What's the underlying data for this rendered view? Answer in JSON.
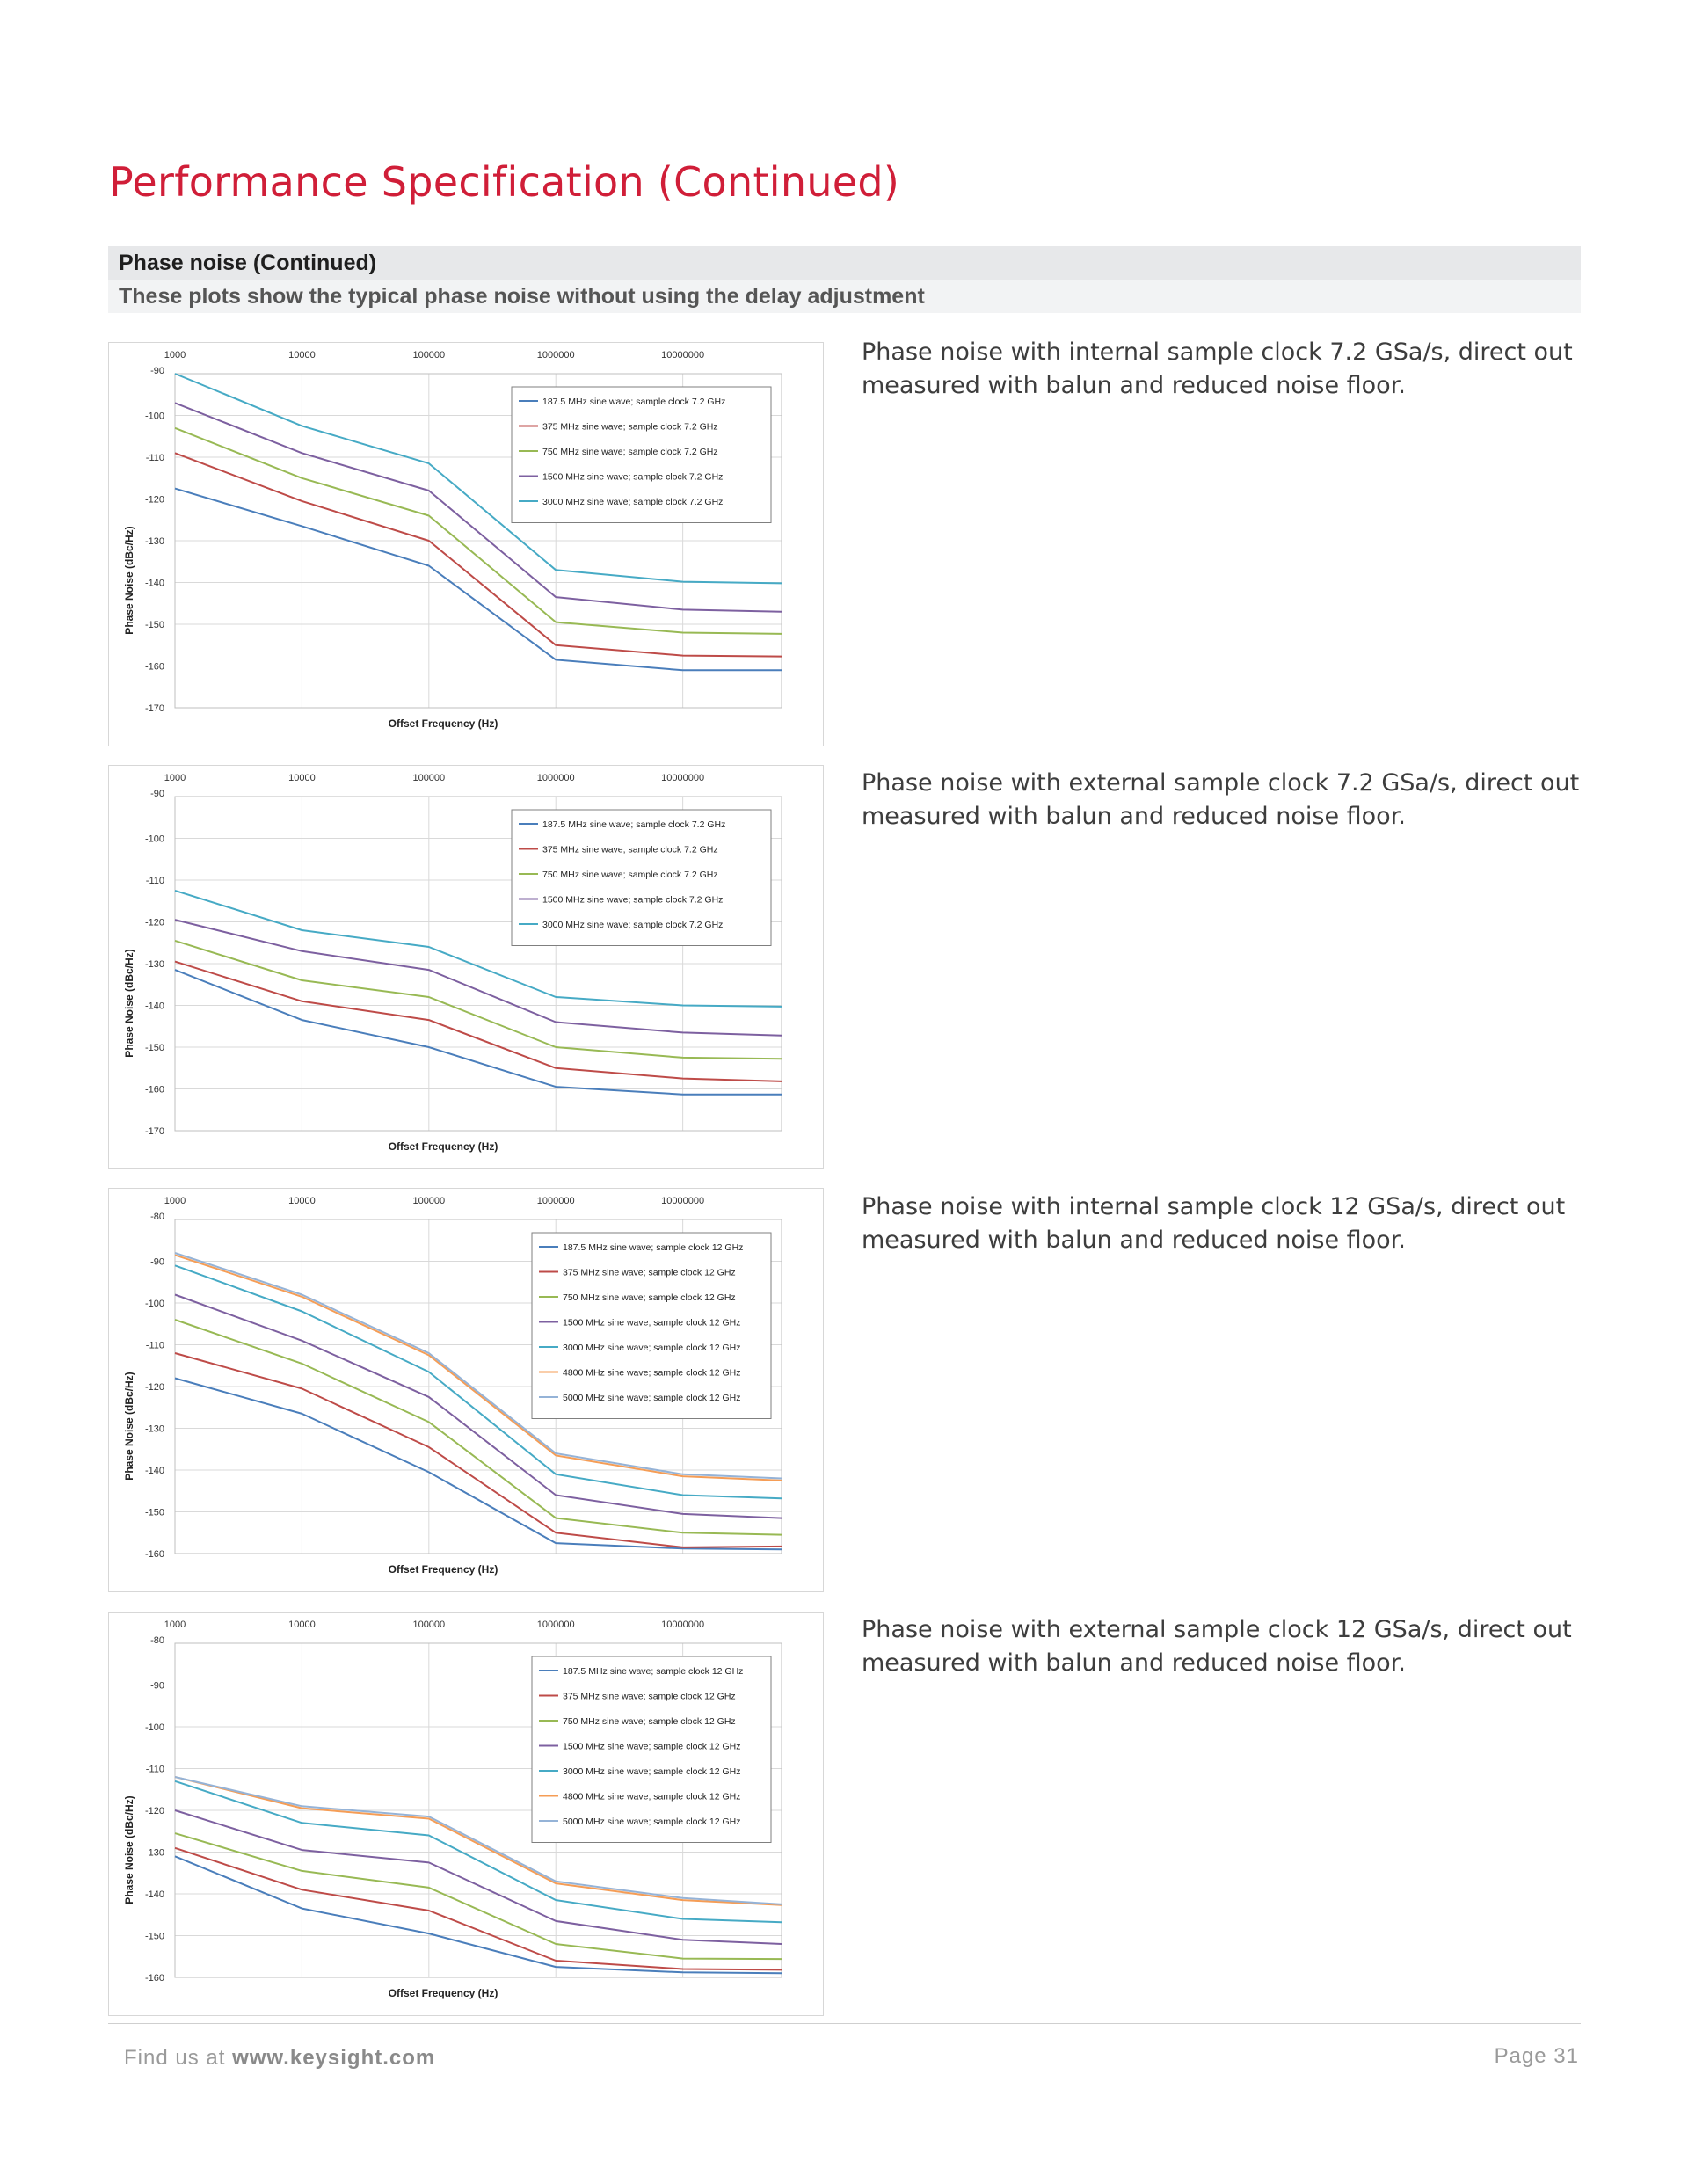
{
  "page": {
    "title": "Performance Specification (Continued)",
    "section_title": "Phase noise (Continued)",
    "section_subtitle": "These plots show the typical phase noise without using the delay adjustment"
  },
  "captions": [
    "Phase noise with internal sample clock 7.2 GSa/s, direct out measured with balun and reduced noise floor.",
    "Phase noise with external sample clock 7.2 GSa/s, direct out measured with balun and reduced noise floor.",
    "Phase noise with internal sample clock 12 GSa/s, direct out measured with balun and reduced noise floor.",
    "Phase noise with external sample clock 12 GSa/s, direct out measured with balun and reduced noise floor."
  ],
  "footer": {
    "prefix": "Find us at ",
    "url": "www.keysight.com",
    "page": "Page 31"
  },
  "chart_data": [
    {
      "type": "line",
      "xlabel": "Offset Frequency (Hz)",
      "ylabel": "Phase Noise (dBc/Hz)",
      "x": [
        1000,
        10000,
        100000,
        1000000,
        10000000,
        60000000
      ],
      "x_ticks": [
        "1000",
        "10000",
        "100000",
        "1000000",
        "10000000"
      ],
      "x_scale": "log",
      "xlim": [
        1000,
        60000000
      ],
      "ylim": [
        -170,
        -90
      ],
      "y_ticks": [
        -90,
        -100,
        -110,
        -120,
        -130,
        -140,
        -150,
        -160,
        -170
      ],
      "grid": true,
      "legend": "top-right",
      "series": [
        {
          "name": "187.5 MHz sine wave; sample clock 7.2 GHz",
          "color": "#4a7ebb",
          "values": [
            -117.5,
            -126.5,
            -136,
            -158.5,
            -161,
            -161
          ]
        },
        {
          "name": "375 MHz sine wave; sample clock 7.2 GHz",
          "color": "#be4b48",
          "values": [
            -109,
            -120.5,
            -130,
            -155,
            -157.5,
            -157.7
          ]
        },
        {
          "name": "750 MHz sine wave; sample clock 7.2 GHz",
          "color": "#98b954",
          "values": [
            -103,
            -115,
            -124,
            -149.5,
            -152,
            -152.3
          ]
        },
        {
          "name": "1500 MHz sine wave; sample clock 7.2 GHz",
          "color": "#7d60a0",
          "values": [
            -97,
            -109,
            -118,
            -143.5,
            -146.5,
            -147
          ]
        },
        {
          "name": "3000 MHz sine wave; sample clock 7.2 GHz",
          "color": "#46aac5",
          "values": [
            -90,
            -102.5,
            -111.5,
            -137,
            -139.8,
            -140.2
          ]
        }
      ]
    },
    {
      "type": "line",
      "xlabel": "Offset Frequency (Hz)",
      "ylabel": "Phase Noise (dBc/Hz)",
      "x": [
        1000,
        10000,
        100000,
        1000000,
        10000000,
        60000000
      ],
      "x_ticks": [
        "1000",
        "10000",
        "100000",
        "1000000",
        "10000000"
      ],
      "x_scale": "log",
      "xlim": [
        1000,
        60000000
      ],
      "ylim": [
        -170,
        -90
      ],
      "y_ticks": [
        -90,
        -100,
        -110,
        -120,
        -130,
        -140,
        -150,
        -160,
        -170
      ],
      "grid": true,
      "legend": "top-right",
      "series": [
        {
          "name": "187.5 MHz sine wave; sample clock 7.2 GHz",
          "color": "#4a7ebb",
          "values": [
            -131.5,
            -143.5,
            -150,
            -159.5,
            -161.3,
            -161.3
          ]
        },
        {
          "name": "375 MHz sine wave; sample clock 7.2 GHz",
          "color": "#be4b48",
          "values": [
            -129.5,
            -139,
            -143.5,
            -155,
            -157.5,
            -158.2
          ]
        },
        {
          "name": "750 MHz sine wave; sample clock 7.2 GHz",
          "color": "#98b954",
          "values": [
            -124.5,
            -134,
            -138,
            -150,
            -152.5,
            -152.8
          ]
        },
        {
          "name": "1500 MHz sine wave; sample clock 7.2 GHz",
          "color": "#7d60a0",
          "values": [
            -119.5,
            -127,
            -131.5,
            -144,
            -146.5,
            -147.2
          ]
        },
        {
          "name": "3000 MHz sine wave; sample clock 7.2 GHz",
          "color": "#46aac5",
          "values": [
            -112.5,
            -122,
            -126,
            -138,
            -140,
            -140.3
          ]
        }
      ]
    },
    {
      "type": "line",
      "xlabel": "Offset Frequency (Hz)",
      "ylabel": "Phase Noise (dBc/Hz)",
      "x": [
        1000,
        10000,
        100000,
        1000000,
        10000000,
        60000000
      ],
      "x_ticks": [
        "1000",
        "10000",
        "100000",
        "1000000",
        "10000000"
      ],
      "x_scale": "log",
      "xlim": [
        1000,
        60000000
      ],
      "ylim": [
        -160,
        -80
      ],
      "y_ticks": [
        -80,
        -90,
        -100,
        -110,
        -120,
        -130,
        -140,
        -150,
        -160
      ],
      "grid": true,
      "legend": "top-right",
      "series": [
        {
          "name": "187.5 MHz sine wave; sample clock 12 GHz",
          "color": "#4a7ebb",
          "values": [
            -118,
            -126.5,
            -140.5,
            -157.5,
            -158.8,
            -159
          ]
        },
        {
          "name": "375 MHz sine wave; sample clock 12 GHz",
          "color": "#be4b48",
          "values": [
            -112,
            -120.5,
            -134.5,
            -155,
            -158.5,
            -158.3
          ]
        },
        {
          "name": "750 MHz sine wave; sample clock 12 GHz",
          "color": "#98b954",
          "values": [
            -104,
            -114.5,
            -128.5,
            -151.5,
            -155,
            -155.5
          ]
        },
        {
          "name": "1500 MHz sine wave; sample clock 12 GHz",
          "color": "#7d60a0",
          "values": [
            -98,
            -109,
            -122.5,
            -146,
            -150.5,
            -151.5
          ]
        },
        {
          "name": "3000 MHz sine wave; sample clock 12 GHz",
          "color": "#46aac5",
          "values": [
            -91,
            -102,
            -116.5,
            -141,
            -146,
            -146.8
          ]
        },
        {
          "name": "4800 MHz sine wave; sample clock 12 GHz",
          "color": "#f59d56",
          "values": [
            -88.5,
            -98.5,
            -112.5,
            -136.5,
            -141.5,
            -142.5
          ]
        },
        {
          "name": "5000 MHz sine wave; sample clock 12 GHz",
          "color": "#95b3d7",
          "values": [
            -88,
            -98,
            -112,
            -136,
            -141,
            -142
          ]
        }
      ]
    },
    {
      "type": "line",
      "xlabel": "Offset Frequency (Hz)",
      "ylabel": "Phase Noise (dBc/Hz)",
      "x": [
        1000,
        10000,
        100000,
        1000000,
        10000000,
        60000000
      ],
      "x_ticks": [
        "1000",
        "10000",
        "100000",
        "1000000",
        "10000000"
      ],
      "x_scale": "log",
      "xlim": [
        1000,
        60000000
      ],
      "ylim": [
        -160,
        -80
      ],
      "y_ticks": [
        -80,
        -90,
        -100,
        -110,
        -120,
        -130,
        -140,
        -150,
        -160
      ],
      "grid": true,
      "legend": "top-right",
      "series": [
        {
          "name": "187.5 MHz sine wave; sample clock 12 GHz",
          "color": "#4a7ebb",
          "values": [
            -131,
            -143.5,
            -149.5,
            -157.5,
            -158.8,
            -159
          ]
        },
        {
          "name": "375 MHz sine wave; sample clock 12 GHz",
          "color": "#be4b48",
          "values": [
            -129,
            -139,
            -144,
            -156,
            -158,
            -158.2
          ]
        },
        {
          "name": "750 MHz sine wave; sample clock 12 GHz",
          "color": "#98b954",
          "values": [
            -125.5,
            -134.5,
            -138.5,
            -152,
            -155.5,
            -155.6
          ]
        },
        {
          "name": "1500 MHz sine wave; sample clock 12 GHz",
          "color": "#7d60a0",
          "values": [
            -120,
            -129.5,
            -132.5,
            -146.5,
            -151,
            -152
          ]
        },
        {
          "name": "3000 MHz sine wave; sample clock 12 GHz",
          "color": "#46aac5",
          "values": [
            -113,
            -123,
            -126,
            -141.5,
            -146,
            -146.8
          ]
        },
        {
          "name": "4800 MHz sine wave; sample clock 12 GHz",
          "color": "#f59d56",
          "values": [
            -112,
            -119.5,
            -122,
            -137.5,
            -141.5,
            -142.7
          ]
        },
        {
          "name": "5000 MHz sine wave; sample clock 12 GHz",
          "color": "#95b3d7",
          "values": [
            -112,
            -119,
            -121.5,
            -137,
            -141,
            -142.5
          ]
        }
      ]
    }
  ]
}
